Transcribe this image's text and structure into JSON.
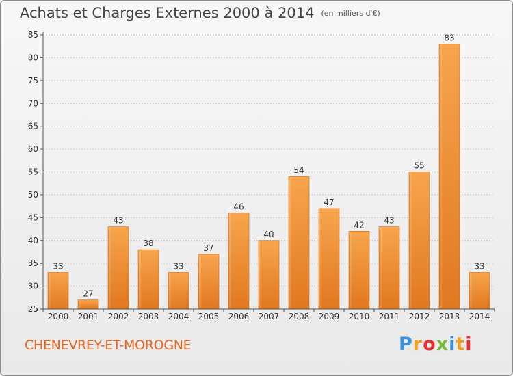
{
  "header": {
    "title": "Achats et Charges Externes 2000 à 2014",
    "subtitle": "(en milliers d'€)"
  },
  "footer": {
    "commune": "CHENEVREY-ET-MOROGNE",
    "logo": {
      "letters": [
        "P",
        "r",
        "o",
        "x",
        "i",
        "t",
        "i"
      ],
      "colors": [
        "#3a8fd6",
        "#f0a020",
        "#e83030",
        "#78b83a",
        "#3a8fd6",
        "#f0a020",
        "#e83030"
      ]
    }
  },
  "colors": {
    "bar_light": "#f7a54d",
    "bar_dark": "#e07820",
    "grid": "#c8c8c8",
    "axis": "#555555",
    "commune_text": "#e8651d"
  },
  "chart_data": {
    "type": "bar",
    "title": "Achats et Charges Externes 2000 à 2014",
    "subtitle": "(en milliers d'€)",
    "categories": [
      "2000",
      "2001",
      "2002",
      "2003",
      "2004",
      "2005",
      "2006",
      "2007",
      "2008",
      "2009",
      "2010",
      "2011",
      "2012",
      "2013",
      "2014"
    ],
    "values": [
      33,
      27,
      43,
      38,
      33,
      37,
      46,
      40,
      54,
      47,
      42,
      43,
      55,
      83,
      33
    ],
    "ylim": [
      25,
      85
    ],
    "yticks": [
      25,
      30,
      35,
      40,
      45,
      50,
      55,
      60,
      65,
      70,
      75,
      80,
      85
    ],
    "grid": true
  }
}
